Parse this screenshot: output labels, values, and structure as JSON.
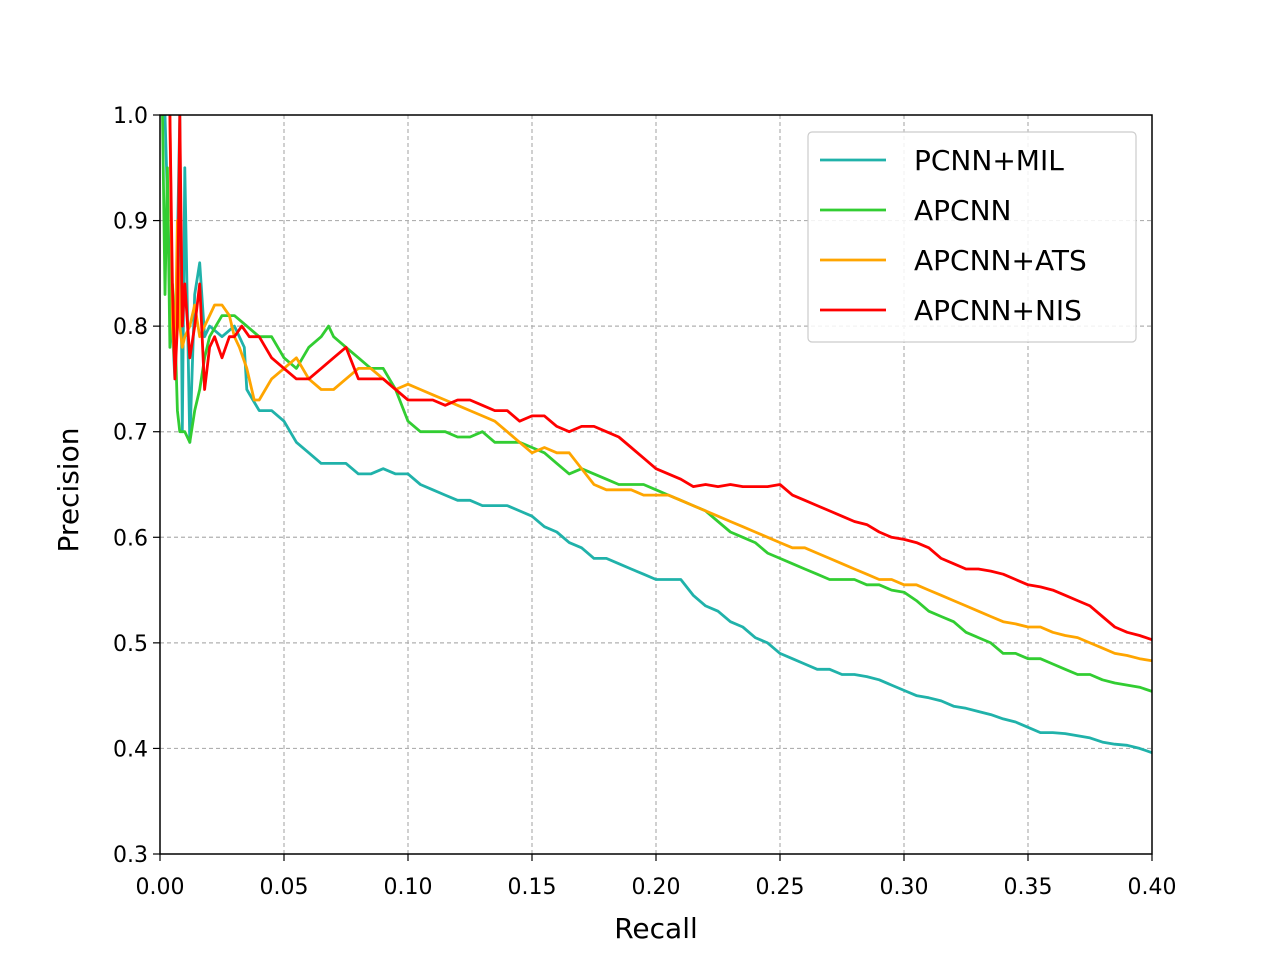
{
  "chart_data": {
    "type": "line",
    "title": "",
    "xlabel": "Recall",
    "ylabel": "Precision",
    "xlim": [
      0.0,
      0.4
    ],
    "ylim": [
      0.3,
      1.0
    ],
    "x_ticks": [
      "0.00",
      "0.05",
      "0.10",
      "0.15",
      "0.20",
      "0.25",
      "0.30",
      "0.35",
      "0.40"
    ],
    "y_ticks": [
      "0.3",
      "0.4",
      "0.5",
      "0.6",
      "0.7",
      "0.8",
      "0.9",
      "1.0"
    ],
    "grid": true,
    "grid_style": "dashed",
    "legend_position": "top-right",
    "series": [
      {
        "name": "PCNN+MIL",
        "color": "#20b2aa",
        "x": [
          0.002,
          0.004,
          0.006,
          0.008,
          0.009,
          0.01,
          0.012,
          0.014,
          0.016,
          0.018,
          0.02,
          0.025,
          0.03,
          0.034,
          0.035,
          0.04,
          0.045,
          0.05,
          0.055,
          0.06,
          0.065,
          0.07,
          0.075,
          0.08,
          0.085,
          0.09,
          0.095,
          0.1,
          0.105,
          0.11,
          0.115,
          0.12,
          0.125,
          0.13,
          0.135,
          0.14,
          0.145,
          0.15,
          0.155,
          0.16,
          0.165,
          0.17,
          0.175,
          0.18,
          0.185,
          0.19,
          0.195,
          0.2,
          0.205,
          0.21,
          0.215,
          0.22,
          0.225,
          0.23,
          0.235,
          0.24,
          0.245,
          0.25,
          0.255,
          0.26,
          0.265,
          0.27,
          0.275,
          0.28,
          0.285,
          0.29,
          0.295,
          0.3,
          0.305,
          0.31,
          0.315,
          0.32,
          0.325,
          0.33,
          0.335,
          0.34,
          0.345,
          0.35,
          0.355,
          0.36,
          0.365,
          0.37,
          0.375,
          0.38,
          0.385,
          0.39,
          0.395,
          0.4
        ],
        "y": [
          1.0,
          0.84,
          0.75,
          1.0,
          0.7,
          0.95,
          0.69,
          0.83,
          0.86,
          0.79,
          0.8,
          0.79,
          0.8,
          0.78,
          0.74,
          0.72,
          0.72,
          0.71,
          0.69,
          0.68,
          0.67,
          0.67,
          0.67,
          0.66,
          0.66,
          0.665,
          0.66,
          0.66,
          0.65,
          0.645,
          0.64,
          0.635,
          0.635,
          0.63,
          0.63,
          0.63,
          0.625,
          0.62,
          0.61,
          0.605,
          0.595,
          0.59,
          0.58,
          0.58,
          0.575,
          0.57,
          0.565,
          0.56,
          0.56,
          0.56,
          0.545,
          0.535,
          0.53,
          0.52,
          0.515,
          0.505,
          0.5,
          0.49,
          0.485,
          0.48,
          0.475,
          0.475,
          0.47,
          0.47,
          0.468,
          0.465,
          0.46,
          0.455,
          0.45,
          0.448,
          0.445,
          0.44,
          0.438,
          0.435,
          0.432,
          0.428,
          0.425,
          0.42,
          0.415,
          0.415,
          0.414,
          0.412,
          0.41,
          0.406,
          0.404,
          0.403,
          0.4,
          0.396
        ]
      },
      {
        "name": "APCNN",
        "color": "#32cd32",
        "x": [
          0.001,
          0.002,
          0.003,
          0.004,
          0.005,
          0.006,
          0.007,
          0.008,
          0.01,
          0.012,
          0.014,
          0.016,
          0.018,
          0.02,
          0.025,
          0.03,
          0.035,
          0.04,
          0.045,
          0.05,
          0.055,
          0.06,
          0.065,
          0.068,
          0.07,
          0.075,
          0.08,
          0.085,
          0.09,
          0.095,
          0.1,
          0.105,
          0.11,
          0.115,
          0.12,
          0.125,
          0.13,
          0.135,
          0.14,
          0.145,
          0.15,
          0.155,
          0.16,
          0.165,
          0.17,
          0.175,
          0.18,
          0.185,
          0.19,
          0.195,
          0.2,
          0.205,
          0.21,
          0.215,
          0.22,
          0.225,
          0.23,
          0.235,
          0.24,
          0.245,
          0.25,
          0.255,
          0.26,
          0.265,
          0.27,
          0.275,
          0.28,
          0.285,
          0.29,
          0.295,
          0.3,
          0.305,
          0.31,
          0.315,
          0.32,
          0.325,
          0.33,
          0.335,
          0.34,
          0.345,
          0.35,
          0.355,
          0.36,
          0.365,
          0.37,
          0.375,
          0.38,
          0.385,
          0.39,
          0.395,
          0.4
        ],
        "y": [
          1.0,
          0.83,
          0.95,
          0.78,
          0.84,
          0.8,
          0.72,
          0.7,
          0.7,
          0.69,
          0.72,
          0.74,
          0.77,
          0.79,
          0.81,
          0.81,
          0.8,
          0.79,
          0.79,
          0.77,
          0.76,
          0.78,
          0.79,
          0.8,
          0.79,
          0.78,
          0.77,
          0.76,
          0.76,
          0.74,
          0.71,
          0.7,
          0.7,
          0.7,
          0.695,
          0.695,
          0.7,
          0.69,
          0.69,
          0.69,
          0.685,
          0.68,
          0.67,
          0.66,
          0.665,
          0.66,
          0.655,
          0.65,
          0.65,
          0.65,
          0.645,
          0.64,
          0.635,
          0.63,
          0.625,
          0.615,
          0.605,
          0.6,
          0.595,
          0.585,
          0.58,
          0.575,
          0.57,
          0.565,
          0.56,
          0.56,
          0.56,
          0.555,
          0.555,
          0.55,
          0.548,
          0.54,
          0.53,
          0.525,
          0.52,
          0.51,
          0.505,
          0.5,
          0.49,
          0.49,
          0.485,
          0.485,
          0.48,
          0.475,
          0.47,
          0.47,
          0.465,
          0.462,
          0.46,
          0.458,
          0.454
        ]
      },
      {
        "name": "APCNN+ATS",
        "color": "#ffa500",
        "x": [
          0.004,
          0.005,
          0.006,
          0.007,
          0.008,
          0.009,
          0.01,
          0.012,
          0.014,
          0.016,
          0.018,
          0.02,
          0.022,
          0.025,
          0.028,
          0.03,
          0.032,
          0.035,
          0.038,
          0.04,
          0.045,
          0.05,
          0.055,
          0.06,
          0.065,
          0.07,
          0.075,
          0.08,
          0.085,
          0.09,
          0.095,
          0.1,
          0.105,
          0.11,
          0.115,
          0.12,
          0.125,
          0.13,
          0.135,
          0.14,
          0.145,
          0.15,
          0.155,
          0.16,
          0.165,
          0.17,
          0.175,
          0.18,
          0.185,
          0.19,
          0.195,
          0.2,
          0.205,
          0.21,
          0.215,
          0.22,
          0.225,
          0.23,
          0.235,
          0.24,
          0.245,
          0.25,
          0.255,
          0.26,
          0.265,
          0.27,
          0.275,
          0.28,
          0.285,
          0.29,
          0.295,
          0.3,
          0.305,
          0.31,
          0.315,
          0.32,
          0.325,
          0.33,
          0.335,
          0.34,
          0.345,
          0.35,
          0.355,
          0.36,
          0.365,
          0.37,
          0.375,
          0.38,
          0.385,
          0.39,
          0.395,
          0.4
        ],
        "y": [
          1.0,
          0.8,
          0.76,
          0.9,
          0.8,
          0.78,
          0.79,
          0.8,
          0.82,
          0.79,
          0.8,
          0.81,
          0.82,
          0.82,
          0.81,
          0.79,
          0.78,
          0.76,
          0.73,
          0.73,
          0.75,
          0.76,
          0.77,
          0.75,
          0.74,
          0.74,
          0.75,
          0.76,
          0.76,
          0.75,
          0.74,
          0.745,
          0.74,
          0.735,
          0.73,
          0.725,
          0.72,
          0.715,
          0.71,
          0.7,
          0.69,
          0.68,
          0.685,
          0.68,
          0.68,
          0.665,
          0.65,
          0.645,
          0.645,
          0.645,
          0.64,
          0.64,
          0.64,
          0.635,
          0.63,
          0.625,
          0.62,
          0.615,
          0.61,
          0.605,
          0.6,
          0.595,
          0.59,
          0.59,
          0.585,
          0.58,
          0.575,
          0.57,
          0.565,
          0.56,
          0.56,
          0.555,
          0.555,
          0.55,
          0.545,
          0.54,
          0.535,
          0.53,
          0.525,
          0.52,
          0.518,
          0.515,
          0.515,
          0.51,
          0.507,
          0.505,
          0.5,
          0.495,
          0.49,
          0.488,
          0.485,
          0.483
        ]
      },
      {
        "name": "APCNN+NIS",
        "color": "#ff0000",
        "x": [
          0.004,
          0.005,
          0.006,
          0.007,
          0.008,
          0.009,
          0.01,
          0.012,
          0.014,
          0.016,
          0.018,
          0.02,
          0.022,
          0.025,
          0.028,
          0.03,
          0.033,
          0.036,
          0.04,
          0.045,
          0.05,
          0.055,
          0.06,
          0.065,
          0.07,
          0.075,
          0.08,
          0.085,
          0.09,
          0.095,
          0.1,
          0.105,
          0.11,
          0.115,
          0.12,
          0.125,
          0.13,
          0.135,
          0.14,
          0.145,
          0.15,
          0.155,
          0.16,
          0.165,
          0.17,
          0.175,
          0.18,
          0.185,
          0.19,
          0.195,
          0.2,
          0.205,
          0.21,
          0.215,
          0.22,
          0.225,
          0.23,
          0.235,
          0.24,
          0.245,
          0.25,
          0.255,
          0.26,
          0.265,
          0.27,
          0.275,
          0.28,
          0.285,
          0.29,
          0.295,
          0.3,
          0.305,
          0.31,
          0.315,
          0.32,
          0.325,
          0.33,
          0.335,
          0.34,
          0.345,
          0.35,
          0.355,
          0.36,
          0.365,
          0.37,
          0.375,
          0.38,
          0.385,
          0.39,
          0.395,
          0.4
        ],
        "y": [
          1.0,
          0.84,
          0.75,
          0.8,
          1.0,
          0.8,
          0.84,
          0.77,
          0.8,
          0.84,
          0.74,
          0.78,
          0.79,
          0.77,
          0.79,
          0.79,
          0.8,
          0.79,
          0.79,
          0.77,
          0.76,
          0.75,
          0.75,
          0.76,
          0.77,
          0.78,
          0.75,
          0.75,
          0.75,
          0.74,
          0.73,
          0.73,
          0.73,
          0.725,
          0.73,
          0.73,
          0.725,
          0.72,
          0.72,
          0.71,
          0.715,
          0.715,
          0.705,
          0.7,
          0.705,
          0.705,
          0.7,
          0.695,
          0.685,
          0.675,
          0.665,
          0.66,
          0.655,
          0.648,
          0.65,
          0.648,
          0.65,
          0.648,
          0.648,
          0.648,
          0.65,
          0.64,
          0.635,
          0.63,
          0.625,
          0.62,
          0.615,
          0.612,
          0.605,
          0.6,
          0.598,
          0.595,
          0.59,
          0.58,
          0.575,
          0.57,
          0.57,
          0.568,
          0.565,
          0.56,
          0.555,
          0.553,
          0.55,
          0.545,
          0.54,
          0.535,
          0.525,
          0.515,
          0.51,
          0.507,
          0.503
        ]
      }
    ]
  }
}
